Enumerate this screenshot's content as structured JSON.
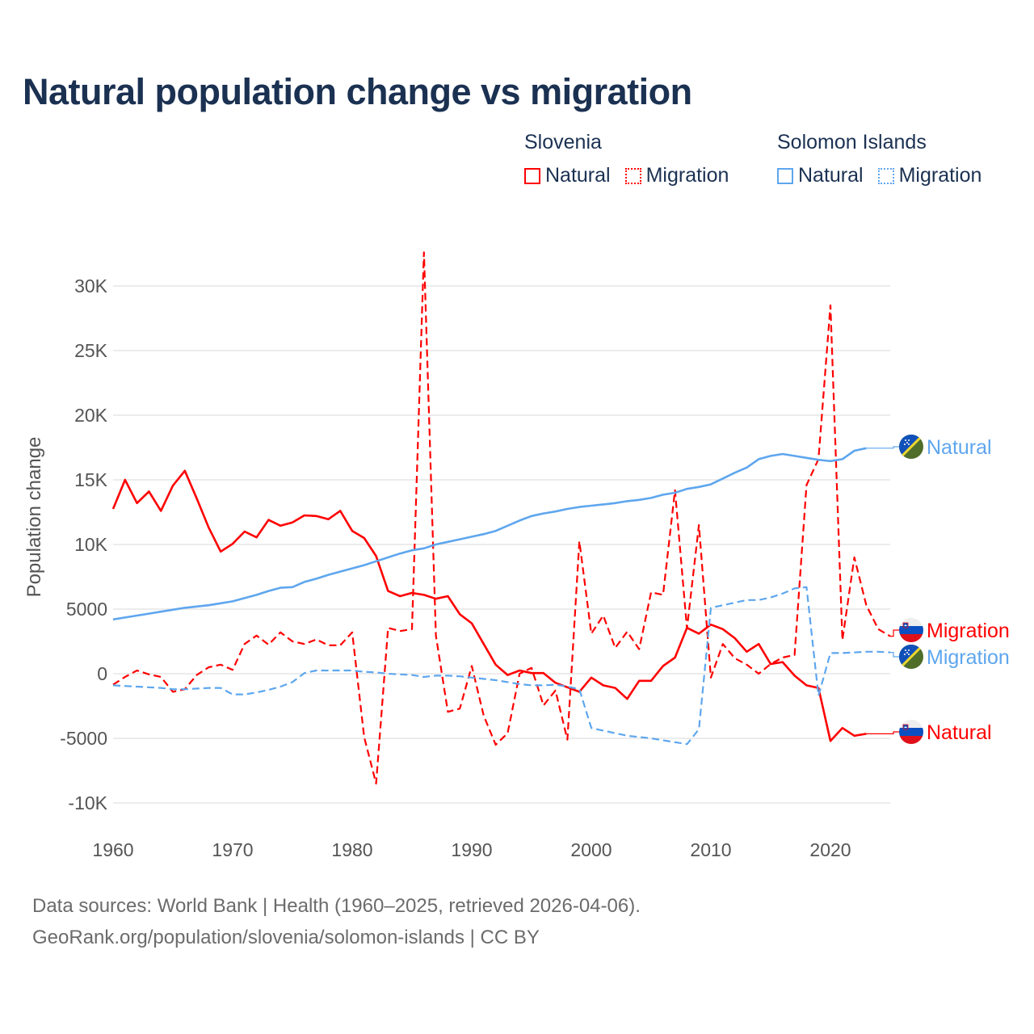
{
  "title": "Natural population change vs migration",
  "legend": [
    {
      "group": "Slovenia",
      "items": [
        {
          "label": "Natural",
          "style": "solid",
          "color": "#ff0000"
        },
        {
          "label": "Migration",
          "style": "dotted",
          "color": "#ff0000"
        }
      ]
    },
    {
      "group": "Solomon Islands",
      "items": [
        {
          "label": "Natural",
          "style": "solid",
          "color": "#5ea6ee"
        },
        {
          "label": "Migration",
          "style": "dotted",
          "color": "#5ea6ee"
        }
      ]
    }
  ],
  "footer": {
    "line1": "Data sources: World Bank | Health (1960–2025, retrieved 2026-04-06).",
    "line2": "GeoRank.org/population/slovenia/solomon-islands | CC BY"
  },
  "chart_data": {
    "type": "line",
    "title": "Natural population change vs migration",
    "xlabel": "",
    "ylabel": "Population change",
    "xlim": [
      1960,
      2025
    ],
    "ylim": [
      -10000,
      32000
    ],
    "x_ticks": [
      1960,
      1970,
      1980,
      1990,
      2000,
      2010,
      2020
    ],
    "x_tick_labels": [
      "1960",
      "1970",
      "1980",
      "1990",
      "2000",
      "2010",
      "2020"
    ],
    "y_ticks": [
      -10000,
      -5000,
      0,
      5000,
      10000,
      15000,
      20000,
      25000,
      30000
    ],
    "y_tick_labels": [
      "-10K",
      "-5000",
      "0",
      "5000",
      "10K",
      "15K",
      "20K",
      "25K",
      "30K"
    ],
    "grid": true,
    "legend_position": "top-right",
    "x_start": 1960,
    "series": [
      {
        "name": "Slovenia Natural",
        "country": "Slovenia",
        "end_label": "Natural",
        "color": "#ff0000",
        "dash": false,
        "values": [
          12750,
          15000,
          13200,
          14100,
          12600,
          14550,
          15700,
          13550,
          11300,
          9450,
          10050,
          11000,
          10550,
          11900,
          11450,
          11700,
          12250,
          12200,
          11950,
          12600,
          11050,
          10500,
          9100,
          6400,
          6000,
          6250,
          6100,
          5800,
          6000,
          4600,
          3900,
          2300,
          700,
          -100,
          250,
          50,
          50,
          -700,
          -1050,
          -1400,
          -300,
          -900,
          -1100,
          -1950,
          -550,
          -550,
          600,
          1250,
          3550,
          3100,
          3800,
          3450,
          2750,
          1700,
          2300,
          750,
          900,
          -150,
          -900,
          -1100,
          -5200,
          -4200,
          -4800,
          -4650
        ]
      },
      {
        "name": "Slovenia Migration",
        "country": "Slovenia",
        "end_label": "Migration",
        "color": "#ff0000",
        "dash": true,
        "values": [
          -850,
          -250,
          250,
          -50,
          -250,
          -1400,
          -1200,
          -100,
          500,
          700,
          300,
          2300,
          2950,
          2250,
          3200,
          2500,
          2300,
          2650,
          2200,
          2200,
          3200,
          -4900,
          -8500,
          3550,
          3300,
          3450,
          32600,
          2950,
          -2950,
          -2700,
          600,
          -3250,
          -5500,
          -4600,
          0,
          450,
          -2450,
          -1300,
          -5100,
          10250,
          3100,
          4500,
          2000,
          3250,
          1900,
          6300,
          6100,
          14200,
          3500,
          11500,
          -300,
          2300,
          1200,
          700,
          0,
          750,
          1250,
          1450,
          14600,
          16600,
          28500,
          2600,
          9000,
          5300,
          3450,
          2900
        ]
      },
      {
        "name": "Solomon Islands Natural",
        "country": "Solomon Islands",
        "end_label": "Natural",
        "color": "#5ea6ee",
        "dash": false,
        "values": [
          4200,
          4350,
          4500,
          4650,
          4800,
          4950,
          5100,
          5200,
          5300,
          5450,
          5600,
          5850,
          6100,
          6400,
          6650,
          6700,
          7100,
          7350,
          7650,
          7900,
          8150,
          8400,
          8700,
          9000,
          9300,
          9550,
          9700,
          10000,
          10200,
          10400,
          10600,
          10800,
          11050,
          11450,
          11850,
          12200,
          12400,
          12550,
          12750,
          12900,
          13000,
          13100,
          13200,
          13350,
          13450,
          13600,
          13850,
          14000,
          14300,
          14450,
          14650,
          15100,
          15550,
          15950,
          16600,
          16850,
          17000,
          16850,
          16700,
          16550,
          16450,
          16600,
          17250,
          17450
        ]
      },
      {
        "name": "Solomon Islands Migration",
        "country": "Solomon Islands",
        "end_label": "Migration",
        "color": "#5ea6ee",
        "dash": true,
        "values": [
          -900,
          -950,
          -1000,
          -1050,
          -1100,
          -1200,
          -1200,
          -1150,
          -1100,
          -1100,
          -1600,
          -1600,
          -1450,
          -1250,
          -1000,
          -650,
          50,
          250,
          250,
          250,
          250,
          150,
          100,
          0,
          -50,
          -100,
          -250,
          -150,
          -150,
          -200,
          -300,
          -400,
          -500,
          -650,
          -800,
          -900,
          -900,
          -850,
          -1000,
          -1200,
          -4200,
          -4400,
          -4600,
          -4800,
          -4900,
          -5000,
          -5150,
          -5300,
          -5450,
          -4300,
          5100,
          5300,
          5500,
          5700,
          5700,
          5900,
          6200,
          6600,
          6700,
          -1700,
          1600,
          1600,
          1650,
          1700,
          1700,
          1650
        ]
      }
    ]
  }
}
